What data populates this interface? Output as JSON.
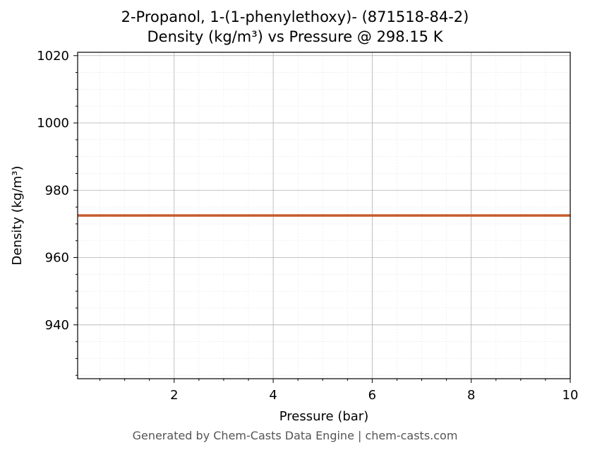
{
  "title_line1": "2-Propanol, 1-(1-phenylethoxy)- (871518-84-2)",
  "title_line2": "Density (kg/m³) vs Pressure @ 298.15 K",
  "footer": "Generated by Chem-Casts Data Engine | chem-casts.com",
  "chart_data": {
    "type": "line",
    "xlabel": "Pressure (bar)",
    "ylabel": "Density (kg/m³)",
    "xlim": [
      0.05,
      10
    ],
    "ylim": [
      924,
      1021
    ],
    "xticks": [
      2,
      4,
      6,
      8,
      10
    ],
    "yticks": [
      940,
      960,
      980,
      1000,
      1020
    ],
    "grid": true,
    "series": [
      {
        "x": [
          0.05,
          10
        ],
        "y": [
          972.5,
          972.5
        ],
        "color": "#c85a2c"
      }
    ]
  }
}
